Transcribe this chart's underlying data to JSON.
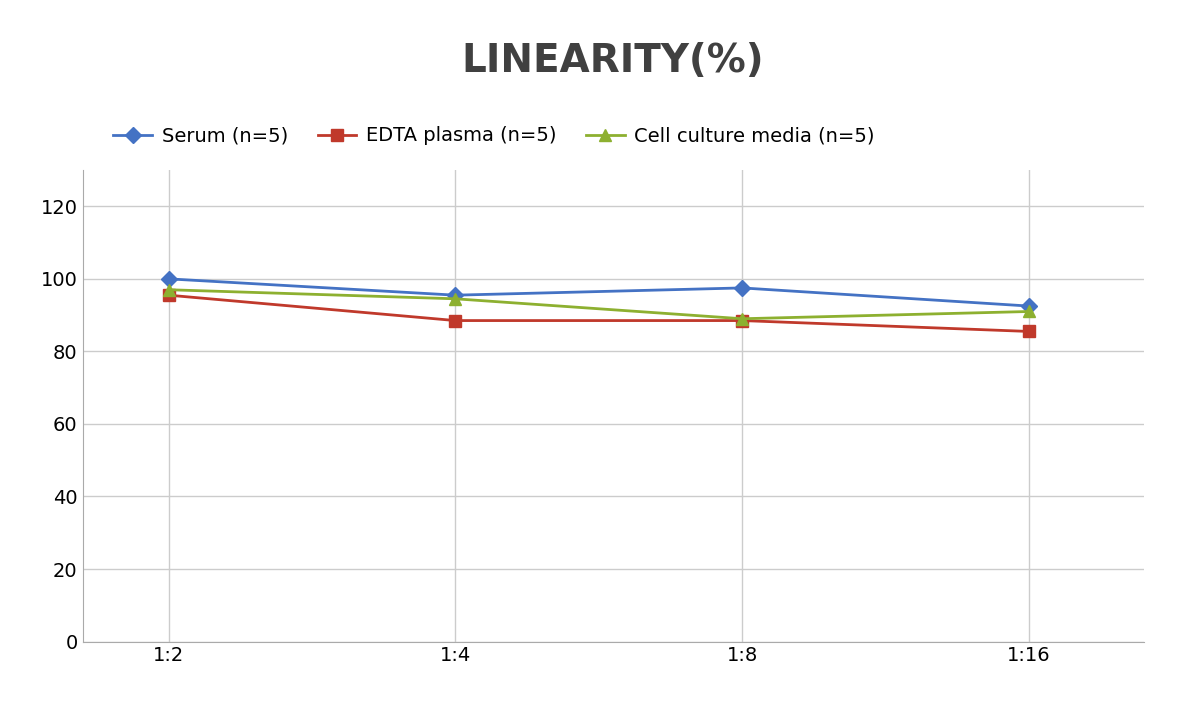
{
  "title": "LINEARITY(%)",
  "title_fontsize": 28,
  "title_fontweight": "bold",
  "title_color": "#404040",
  "x_labels": [
    "1:2",
    "1:4",
    "1:8",
    "1:16"
  ],
  "x_positions": [
    0,
    1,
    2,
    3
  ],
  "series": [
    {
      "label": "Serum (n=5)",
      "values": [
        100.0,
        95.5,
        97.5,
        92.5
      ],
      "color": "#4472C4",
      "marker": "D",
      "markersize": 8,
      "linewidth": 2
    },
    {
      "label": "EDTA plasma (n=5)",
      "values": [
        95.5,
        88.5,
        88.5,
        85.5
      ],
      "color": "#C0392B",
      "marker": "s",
      "markersize": 8,
      "linewidth": 2
    },
    {
      "label": "Cell culture media (n=5)",
      "values": [
        97.0,
        94.5,
        89.0,
        91.0
      ],
      "color": "#8DB030",
      "marker": "^",
      "markersize": 8,
      "linewidth": 2
    }
  ],
  "ylim": [
    0,
    130
  ],
  "yticks": [
    0,
    20,
    40,
    60,
    80,
    100,
    120
  ],
  "grid_color": "#CCCCCC",
  "grid_linewidth": 1,
  "background_color": "#FFFFFF",
  "legend_fontsize": 14,
  "tick_fontsize": 14,
  "spine_color": "#AAAAAA"
}
